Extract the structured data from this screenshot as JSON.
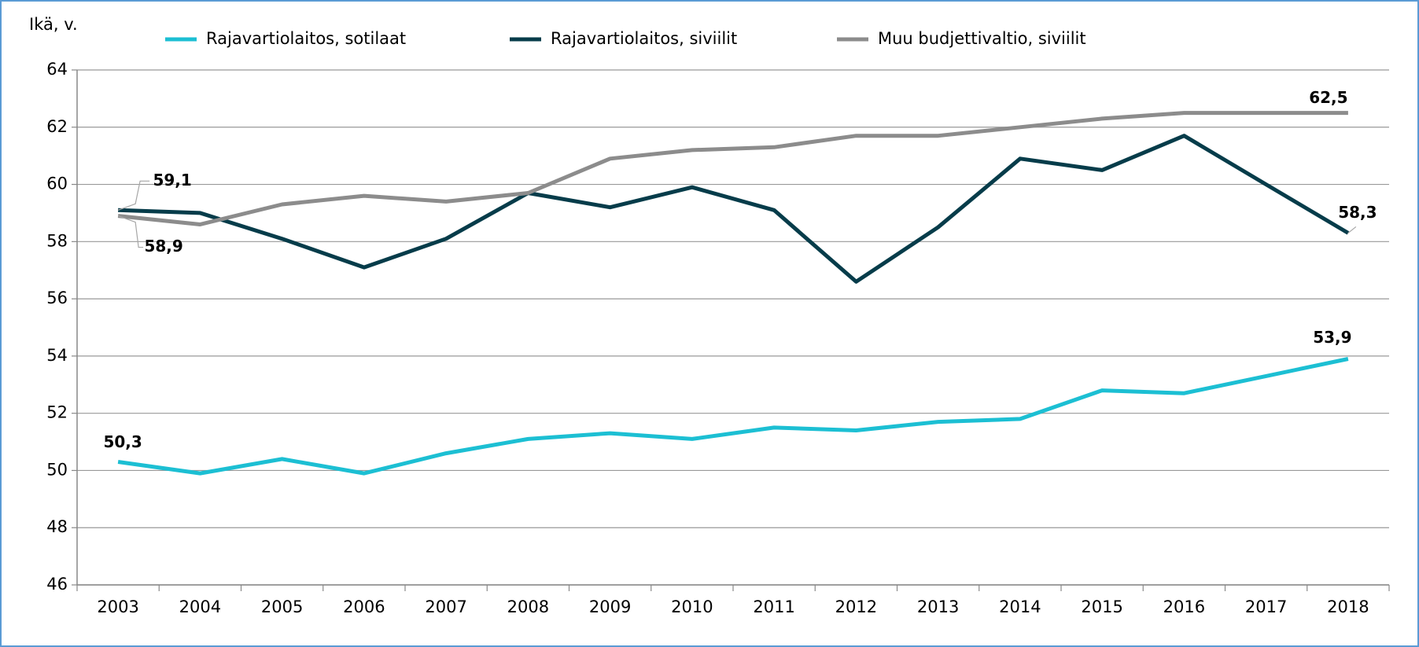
{
  "chart_data": {
    "type": "line",
    "ylabel": "Ikä, v.",
    "categories": [
      "2003",
      "2004",
      "2005",
      "2006",
      "2007",
      "2008",
      "2009",
      "2010",
      "2011",
      "2012",
      "2013",
      "2014",
      "2015",
      "2016",
      "2017",
      "2018"
    ],
    "series": [
      {
        "name": "Rajavartiolaitos, sotilaat",
        "color": "#1cbfd3",
        "values": [
          50.3,
          49.9,
          50.4,
          49.9,
          50.6,
          51.1,
          51.3,
          51.1,
          51.5,
          51.4,
          51.7,
          51.8,
          52.8,
          52.7,
          53.3,
          53.9
        ],
        "value_labels": [
          "50,3",
          null,
          null,
          null,
          null,
          null,
          null,
          null,
          null,
          null,
          null,
          null,
          null,
          null,
          null,
          "53,9"
        ]
      },
      {
        "name": "Rajavartiolaitos, siviilit",
        "color": "#063c4a",
        "values": [
          59.1,
          59.0,
          58.1,
          57.1,
          58.1,
          59.7,
          59.2,
          59.9,
          59.1,
          56.6,
          58.5,
          60.9,
          60.5,
          61.7,
          60.0,
          58.3
        ],
        "value_labels": [
          "59,1",
          null,
          null,
          null,
          null,
          null,
          null,
          null,
          null,
          null,
          null,
          null,
          null,
          null,
          null,
          "58,3"
        ]
      },
      {
        "name": "Muu budjettivaltio, siviilit",
        "color": "#8c8c8c",
        "values": [
          58.9,
          58.6,
          59.3,
          59.6,
          59.4,
          59.7,
          60.9,
          61.2,
          61.3,
          61.7,
          61.7,
          62.0,
          62.3,
          62.5,
          62.5,
          62.5
        ],
        "value_labels": [
          "58,9",
          null,
          null,
          null,
          null,
          null,
          null,
          null,
          null,
          null,
          null,
          null,
          null,
          null,
          null,
          "62,5"
        ]
      }
    ],
    "ylim": [
      46,
      64
    ],
    "yticks": [
      46,
      48,
      50,
      52,
      54,
      56,
      58,
      60,
      62,
      64
    ],
    "grid": true
  }
}
